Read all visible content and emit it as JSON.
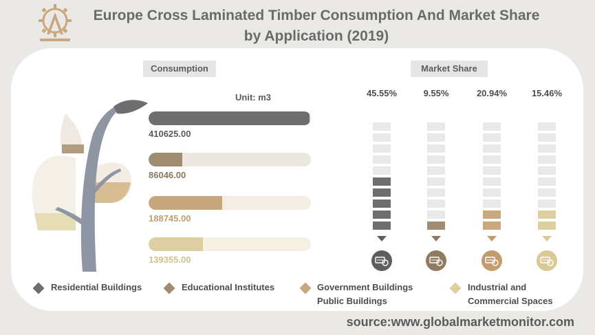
{
  "header": {
    "title_line1": "Europe Cross Laminated Timber Consumption And Market Share",
    "title_line2": "by Application (2019)"
  },
  "sections": {
    "consumption_label": "Consumption",
    "market_share_label": "Market Share",
    "unit": "Unit: m3"
  },
  "source": "source:www.globalmarketmonitor.com",
  "colors": {
    "residential": "#6e6e6e",
    "educational": "#a08c70",
    "government": "#c9a77e",
    "industrial": "#ddcfa0"
  },
  "chart_data": [
    {
      "type": "bar",
      "orientation": "horizontal",
      "categories": [
        "Residential Buildings",
        "Educational Institutes",
        "Government Buildings Public Buildings",
        "Industrial and Commercial Spaces"
      ],
      "values": [
        410625.0,
        86046.0,
        188745.0,
        139355.0
      ],
      "value_labels": [
        "410625.00",
        "86046.00",
        "188745.00",
        "139355.00"
      ],
      "unit": "Unit: m3",
      "title": "Consumption"
    },
    {
      "type": "bar",
      "categories": [
        "Residential Buildings",
        "Educational Institutes",
        "Government Buildings Public Buildings",
        "Industrial and Commercial Spaces"
      ],
      "values": [
        45.55,
        9.55,
        20.94,
        15.46
      ],
      "value_labels": [
        "45.55%",
        "9.55%",
        "20.94%",
        "15.46%"
      ],
      "title": "Market Share"
    }
  ],
  "legend": [
    {
      "line1": "Residential Buildings",
      "line2": ""
    },
    {
      "line1": "Educational Institutes",
      "line2": ""
    },
    {
      "line1": "Government Buildings",
      "line2": "Public Buildings"
    },
    {
      "line1": "Industrial and",
      "line2": "Commercial Spaces"
    }
  ]
}
